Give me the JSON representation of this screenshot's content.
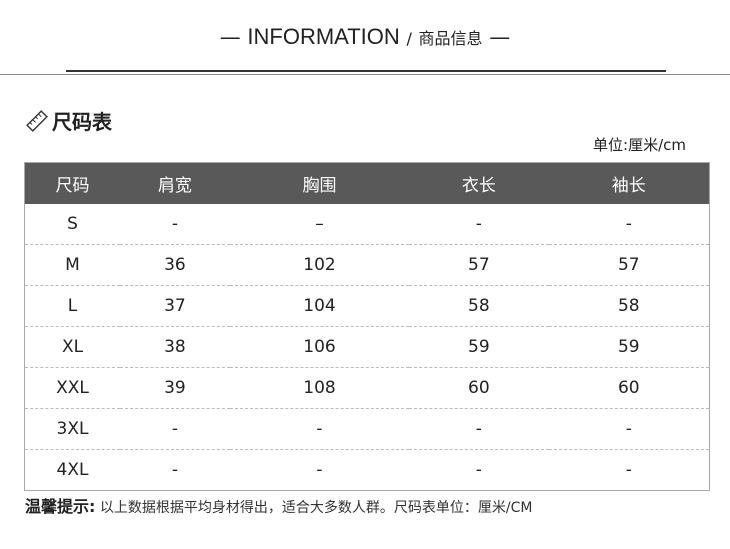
{
  "header": {
    "dash": "—",
    "title_en": "INFORMATION",
    "sep": "/",
    "title_cn": "商品信息"
  },
  "section": {
    "title": "尺码表",
    "icon": "ruler-icon",
    "unit": "单位:厘米/cm"
  },
  "table": {
    "columns": [
      "尺码",
      "肩宽",
      "胸围",
      "衣长",
      "袖长"
    ],
    "rows": [
      [
        "S",
        "-",
        "–",
        "-",
        "-"
      ],
      [
        "M",
        "36",
        "102",
        "57",
        "57"
      ],
      [
        "L",
        "37",
        "104",
        "58",
        "58"
      ],
      [
        "XL",
        "38",
        "106",
        "59",
        "59"
      ],
      [
        "XXL",
        "39",
        "108",
        "60",
        "60"
      ],
      [
        "3XL",
        "-",
        "-",
        "-",
        "-"
      ],
      [
        "4XL",
        "-",
        "-",
        "-",
        "-"
      ]
    ]
  },
  "note": {
    "label": "温馨提示:",
    "text": "以上数据根据平均身材得出，适合大多数人群。尺码表单位：厘米/CM"
  },
  "colors": {
    "header_bg": "#595959"
  }
}
